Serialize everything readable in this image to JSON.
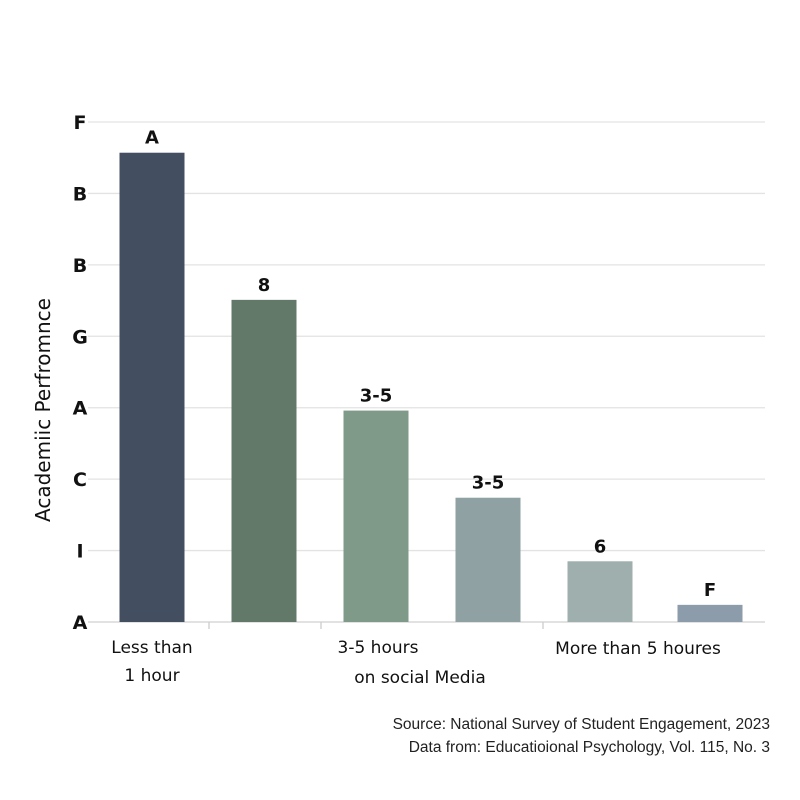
{
  "chart_data": {
    "type": "bar",
    "title": "",
    "ylabel": "Academiic Perfromnce",
    "xlabel": "",
    "ylim": [
      0,
      7
    ],
    "grid": true,
    "y_tick_labels": [
      "A",
      "I",
      "C",
      "A",
      "G",
      "B",
      "B",
      "F"
    ],
    "x_tick_labels": [
      {
        "lines": [
          "Less than",
          "1 hour"
        ]
      },
      {
        "lines": [
          "3-5 hours",
          "on social Media"
        ]
      },
      {
        "lines": [
          "More than 5 houres"
        ]
      }
    ],
    "values": [
      6.57,
      4.51,
      2.96,
      1.74,
      0.85,
      0.24
    ],
    "data_labels": [
      "A",
      "8",
      "3-5",
      "3-5",
      "6",
      "F"
    ],
    "colors": [
      "#434f60",
      "#627868",
      "#7f9a88",
      "#8fa1a3",
      "#9eafae",
      "#8d9caa"
    ]
  },
  "source": {
    "line1": "Source: National Survey of Student Engagement, 2023",
    "line2": "Data from: Educatioional Psychology, Vol. 115, No. 3"
  }
}
